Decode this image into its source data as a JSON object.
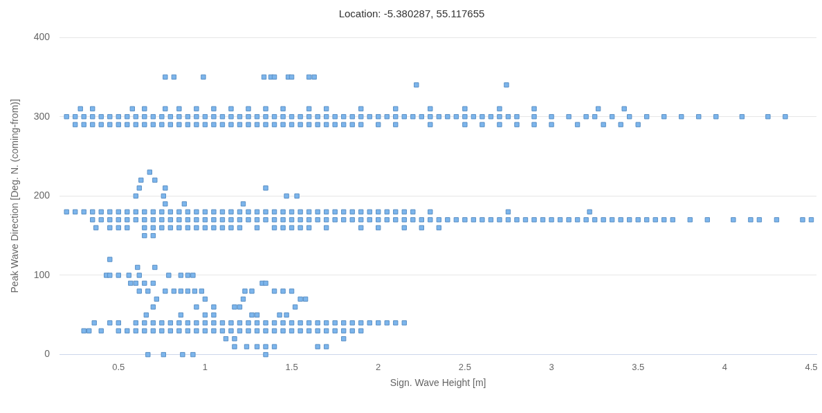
{
  "chart_data": {
    "type": "scatter",
    "title": "Location: -5.380287, 55.117655",
    "xlabel": "Sign. Wave Height [m]",
    "ylabel": "Peak Wave Direction [Deg. N. (coming-from)]",
    "xlim": [
      0.16,
      4.53
    ],
    "xticks": [
      0.5,
      1,
      1.5,
      2,
      2.5,
      3,
      3.5,
      4,
      4.5
    ],
    "ylim": [
      0,
      400
    ],
    "yticks": [
      0,
      100,
      200,
      300,
      400
    ],
    "grid": "y",
    "legend": false,
    "marker": "square",
    "series": [
      {
        "color": "#7cb5ec",
        "x": [
          0.2,
          0.25,
          0.3,
          0.35,
          0.4,
          0.45,
          0.5,
          0.55,
          0.6,
          0.65,
          0.7,
          0.75,
          0.8,
          0.85,
          0.9,
          0.95,
          1,
          1.05,
          1.1,
          1.15,
          1.2,
          1.25,
          1.3,
          1.35,
          1.4,
          1.45,
          1.5,
          1.55,
          1.6,
          1.65,
          1.7,
          1.75,
          1.8,
          1.85,
          1.9,
          1.95,
          2,
          2.05,
          2.1,
          2.15,
          2.2,
          2.25,
          2.3,
          2.35,
          2.4,
          2.45,
          2.5,
          2.55,
          2.6,
          2.65,
          2.7,
          2.75,
          2.8,
          2.9,
          3,
          3.1,
          3.2,
          3.25,
          3.35,
          3.45,
          3.55,
          3.65,
          3.75,
          3.85,
          3.95,
          4.1,
          4.25,
          4.35,
          0.25,
          0.3,
          0.35,
          0.4,
          0.45,
          0.5,
          0.55,
          0.6,
          0.65,
          0.7,
          0.75,
          0.8,
          0.85,
          0.9,
          0.95,
          1,
          1.05,
          1.1,
          1.15,
          1.2,
          1.25,
          1.3,
          1.35,
          1.4,
          1.45,
          1.5,
          1.55,
          1.6,
          1.65,
          1.7,
          1.75,
          1.8,
          1.85,
          1.9,
          2,
          2.1,
          2.3,
          2.5,
          2.6,
          2.7,
          2.8,
          2.9,
          3,
          3.15,
          3.3,
          3.4,
          3.5,
          0.28,
          0.35,
          0.58,
          0.65,
          0.77,
          0.85,
          0.95,
          1.05,
          1.15,
          1.25,
          1.35,
          1.45,
          1.6,
          1.7,
          1.9,
          2.1,
          2.3,
          2.5,
          2.7,
          2.9,
          3.27,
          3.42,
          0.77,
          0.82,
          0.99,
          1.34,
          1.38,
          1.4,
          1.48,
          1.5,
          1.6,
          1.63,
          2.22,
          2.74,
          0.2,
          0.25,
          0.3,
          0.35,
          0.4,
          0.45,
          0.5,
          0.55,
          0.6,
          0.65,
          0.7,
          0.75,
          0.8,
          0.85,
          0.9,
          0.95,
          1,
          1.05,
          1.1,
          1.15,
          1.2,
          1.25,
          1.3,
          1.35,
          1.4,
          1.45,
          1.5,
          1.55,
          1.6,
          1.65,
          1.7,
          1.75,
          1.8,
          1.85,
          1.9,
          1.95,
          2,
          2.05,
          2.1,
          2.15,
          2.2,
          2.3,
          2.75,
          3.22,
          0.35,
          0.4,
          0.45,
          0.5,
          0.55,
          0.6,
          0.65,
          0.7,
          0.75,
          0.8,
          0.85,
          0.9,
          0.95,
          1,
          1.05,
          1.1,
          1.15,
          1.2,
          1.25,
          1.3,
          1.35,
          1.4,
          1.45,
          1.5,
          1.55,
          1.6,
          1.65,
          1.7,
          1.75,
          1.8,
          1.85,
          1.9,
          1.95,
          2,
          2.05,
          2.1,
          2.15,
          2.2,
          2.25,
          2.3,
          2.35,
          2.4,
          2.45,
          2.5,
          2.55,
          2.6,
          2.65,
          2.7,
          2.75,
          2.8,
          2.85,
          2.9,
          2.95,
          3,
          3.05,
          3.1,
          3.15,
          3.2,
          3.25,
          3.3,
          3.35,
          3.4,
          3.45,
          3.5,
          3.55,
          3.6,
          3.65,
          3.7,
          3.8,
          3.9,
          4.05,
          4.15,
          4.2,
          4.3,
          4.45,
          4.5,
          0.37,
          0.45,
          0.5,
          0.55,
          0.65,
          0.7,
          0.75,
          0.8,
          0.85,
          0.9,
          0.95,
          1,
          1.05,
          1.1,
          1.15,
          1.2,
          1.3,
          1.4,
          1.45,
          1.5,
          1.55,
          1.6,
          1.7,
          1.9,
          2,
          2.15,
          2.25,
          2.35,
          0.65,
          0.7,
          0.77,
          0.88,
          1.22,
          0.6,
          0.76,
          1.47,
          1.53,
          0.62,
          0.77,
          1.35,
          0.63,
          0.71,
          0.68,
          0.45,
          0.61,
          0.71,
          0.43,
          0.45,
          0.5,
          0.56,
          0.62,
          0.79,
          0.86,
          0.9,
          0.93,
          0.57,
          0.6,
          0.65,
          0.7,
          1.33,
          1.35,
          0.62,
          0.67,
          0.77,
          0.82,
          0.86,
          0.9,
          0.94,
          0.98,
          1.23,
          1.27,
          1.4,
          1.45,
          1.5,
          0.72,
          1,
          1.22,
          1.55,
          1.58,
          0.7,
          0.95,
          1.05,
          1.17,
          1.2,
          1.52,
          0.66,
          0.86,
          1,
          1.05,
          1.27,
          1.3,
          1.43,
          1.47,
          1.12,
          1.17,
          1.8,
          1.17,
          1.24,
          1.3,
          1.35,
          1.4,
          1.65,
          1.7,
          0.67,
          0.76,
          0.87,
          0.93,
          1.35,
          0.36,
          0.45,
          0.5,
          0.6,
          0.65,
          0.7,
          0.75,
          0.8,
          0.85,
          0.9,
          0.95,
          1,
          1.05,
          1.1,
          1.15,
          1.2,
          1.25,
          1.3,
          1.35,
          1.4,
          1.45,
          1.5,
          1.55,
          1.6,
          1.65,
          1.7,
          1.75,
          1.8,
          1.85,
          1.9,
          1.95,
          2,
          2.05,
          2.1,
          2.15,
          0.3,
          0.33,
          0.4,
          0.5,
          0.55,
          0.6,
          0.65,
          0.7,
          0.75,
          0.8,
          0.85,
          0.9,
          0.95,
          1,
          1.05,
          1.1,
          1.15,
          1.2,
          1.25,
          1.3,
          1.35,
          1.4,
          1.45,
          1.5,
          1.55,
          1.6,
          1.65,
          1.7,
          1.75,
          1.8,
          1.85,
          1.9
        ],
        "values": [
          300,
          300,
          300,
          300,
          300,
          300,
          300,
          300,
          300,
          300,
          300,
          300,
          300,
          300,
          300,
          300,
          300,
          300,
          300,
          300,
          300,
          300,
          300,
          300,
          300,
          300,
          300,
          300,
          300,
          300,
          300,
          300,
          300,
          300,
          300,
          300,
          300,
          300,
          300,
          300,
          300,
          300,
          300,
          300,
          300,
          300,
          300,
          300,
          300,
          300,
          300,
          300,
          300,
          300,
          300,
          300,
          300,
          300,
          300,
          300,
          300,
          300,
          300,
          300,
          300,
          300,
          300,
          300,
          290,
          290,
          290,
          290,
          290,
          290,
          290,
          290,
          290,
          290,
          290,
          290,
          290,
          290,
          290,
          290,
          290,
          290,
          290,
          290,
          290,
          290,
          290,
          290,
          290,
          290,
          290,
          290,
          290,
          290,
          290,
          290,
          290,
          290,
          290,
          290,
          290,
          290,
          290,
          290,
          290,
          290,
          290,
          290,
          290,
          290,
          290,
          310,
          310,
          310,
          310,
          310,
          310,
          310,
          310,
          310,
          310,
          310,
          310,
          310,
          310,
          310,
          310,
          310,
          310,
          310,
          310,
          310,
          310,
          350,
          350,
          350,
          350,
          350,
          350,
          350,
          350,
          350,
          350,
          340,
          340,
          180,
          180,
          180,
          180,
          180,
          180,
          180,
          180,
          180,
          180,
          180,
          180,
          180,
          180,
          180,
          180,
          180,
          180,
          180,
          180,
          180,
          180,
          180,
          180,
          180,
          180,
          180,
          180,
          180,
          180,
          180,
          180,
          180,
          180,
          180,
          180,
          180,
          180,
          180,
          180,
          180,
          180,
          180,
          180,
          170,
          170,
          170,
          170,
          170,
          170,
          170,
          170,
          170,
          170,
          170,
          170,
          170,
          170,
          170,
          170,
          170,
          170,
          170,
          170,
          170,
          170,
          170,
          170,
          170,
          170,
          170,
          170,
          170,
          170,
          170,
          170,
          170,
          170,
          170,
          170,
          170,
          170,
          170,
          170,
          170,
          170,
          170,
          170,
          170,
          170,
          170,
          170,
          170,
          170,
          170,
          170,
          170,
          170,
          170,
          170,
          170,
          170,
          170,
          170,
          170,
          170,
          170,
          170,
          170,
          170,
          170,
          170,
          170,
          170,
          170,
          170,
          170,
          170,
          170,
          170,
          160,
          160,
          160,
          160,
          160,
          160,
          160,
          160,
          160,
          160,
          160,
          160,
          160,
          160,
          160,
          160,
          160,
          160,
          160,
          160,
          160,
          160,
          160,
          160,
          160,
          160,
          160,
          160,
          150,
          150,
          190,
          190,
          190,
          200,
          200,
          200,
          200,
          210,
          210,
          210,
          220,
          220,
          230,
          120,
          110,
          110,
          100,
          100,
          100,
          100,
          100,
          100,
          100,
          100,
          100,
          90,
          90,
          90,
          90,
          90,
          90,
          80,
          80,
          80,
          80,
          80,
          80,
          80,
          80,
          80,
          80,
          80,
          80,
          80,
          70,
          70,
          70,
          70,
          70,
          60,
          60,
          60,
          60,
          60,
          60,
          50,
          50,
          50,
          50,
          50,
          50,
          50,
          50,
          20,
          20,
          20,
          10,
          10,
          10,
          10,
          10,
          10,
          10,
          0,
          0,
          0,
          0,
          0,
          40,
          40,
          40,
          40,
          40,
          40,
          40,
          40,
          40,
          40,
          40,
          40,
          40,
          40,
          40,
          40,
          40,
          40,
          40,
          40,
          40,
          40,
          40,
          40,
          40,
          40,
          40,
          40,
          40,
          40,
          40,
          40,
          40,
          40,
          40,
          30,
          30,
          30,
          30,
          30,
          30,
          30,
          30,
          30,
          30,
          30,
          30,
          30,
          30,
          30,
          30,
          30,
          30,
          30,
          30,
          30,
          30,
          30,
          30,
          30,
          30,
          30,
          30,
          30,
          30,
          30,
          30
        ]
      }
    ]
  }
}
